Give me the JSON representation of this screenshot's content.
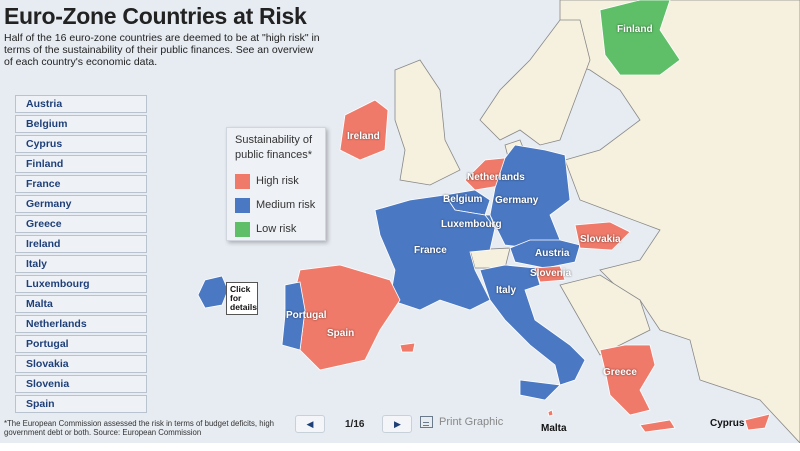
{
  "title": "Euro-Zone Countries at Risk",
  "intro": "Half of the 16 euro-zone countries are deemed to be at \"high risk\" in terms of the sustainability of their public finances. See an overview of each country's economic data.",
  "countries": [
    "Austria",
    "Belgium",
    "Cyprus",
    "Finland",
    "France",
    "Germany",
    "Greece",
    "Ireland",
    "Italy",
    "Luxembourg",
    "Malta",
    "Netherlands",
    "Portugal",
    "Slovakia",
    "Slovenia",
    "Spain"
  ],
  "legend": {
    "title": "Sustainability of public finances*",
    "items": [
      {
        "label": "High risk",
        "color": "#f07a6a"
      },
      {
        "label": "Medium risk",
        "color": "#4a78c2"
      },
      {
        "label": "Low risk",
        "color": "#5fbf68"
      }
    ]
  },
  "map_labels": {
    "finland": "Finland",
    "ireland": "Ireland",
    "netherlands": "Netherlands",
    "belgium": "Belgium",
    "germany": "Germany",
    "luxembourg": "Luxembourg",
    "france": "France",
    "austria": "Austria",
    "slovakia": "Slovakia",
    "slovenia": "Slovenia",
    "italy": "Italy",
    "portugal": "Portugal",
    "spain": "Spain",
    "greece": "Greece",
    "malta": "Malta",
    "cyprus": "Cyprus"
  },
  "tooltip": "Click for details",
  "footnote": "*The European Commission assessed the risk in terms of budget deficits, high government debt or both. Source: European Commission",
  "pager": {
    "current": "1/16",
    "prev_icon": "triangle-left",
    "next_icon": "triangle-right"
  },
  "print_label": "Print Graphic",
  "colors": {
    "sea": "#e7ecf2",
    "land": "#f6f1df"
  }
}
